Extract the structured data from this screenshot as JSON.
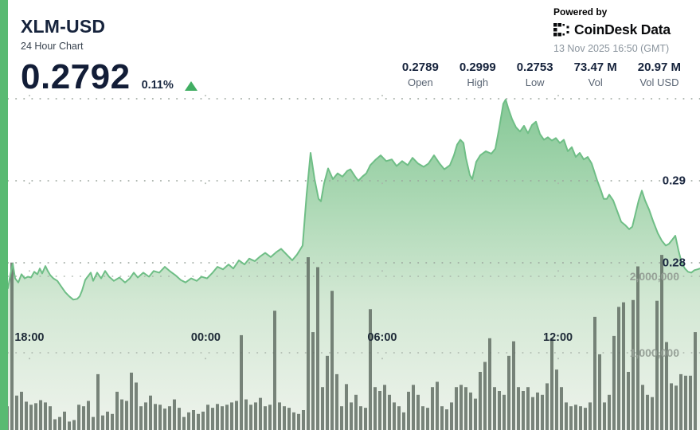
{
  "header": {
    "symbol": "XLM-USD",
    "subtitle": "24 Hour Chart",
    "price": "0.2792",
    "change_pct": "0.11%",
    "change_direction": "up"
  },
  "stats": [
    {
      "value": "0.2789",
      "label": "Open"
    },
    {
      "value": "0.2999",
      "label": "High"
    },
    {
      "value": "0.2753",
      "label": "Low"
    },
    {
      "value": "73.47 M",
      "label": "Vol"
    },
    {
      "value": "20.97 M",
      "label": "Vol USD"
    }
  ],
  "branding": {
    "powered_by": "Powered by",
    "brand": "CoinDesk Data",
    "timestamp": "13 Nov 2025 16:50 (GMT)"
  },
  "colors": {
    "accent_green": "#59ba72",
    "line_green": "#6fbe86",
    "area_top": "#84c795",
    "area_bottom": "#eef3ec",
    "volume_bar": "#5e6a60",
    "up_triangle": "#41ae63",
    "dark_navy_text": "#16233c",
    "gray_text": "#5a6574",
    "timestamp_gray": "#8b959e"
  },
  "chart_data": {
    "type": "area",
    "title": "XLM-USD 24 Hour Chart",
    "legend": [],
    "grid": "dotted",
    "y_axis_price": {
      "side": "right",
      "ticks": [
        {
          "value": 0.3,
          "label": ""
        },
        {
          "value": 0.29,
          "label": "0.29"
        },
        {
          "value": 0.28,
          "label": "0.28"
        }
      ],
      "range_visible": [
        0.2753,
        0.2999
      ]
    },
    "y_axis_volume": {
      "side": "right",
      "ticks": [
        {
          "value": 2000000,
          "label": "2,000,000"
        },
        {
          "value": 1000000,
          "label": "1,000,000"
        }
      ]
    },
    "x_axis": {
      "ticks": [
        {
          "label": "18:00",
          "t": 0.042
        },
        {
          "label": "00:00",
          "t": 0.294
        },
        {
          "label": "06:00",
          "t": 0.546
        },
        {
          "label": "12:00",
          "t": 0.797
        }
      ]
    },
    "price_series": {
      "name": "XLM-USD price",
      "points": [
        [
          0.0114,
          0.2769
        ],
        [
          0.0148,
          0.2785
        ],
        [
          0.0182,
          0.2799
        ],
        [
          0.0216,
          0.2781
        ],
        [
          0.0262,
          0.2776
        ],
        [
          0.0307,
          0.2786
        ],
        [
          0.0353,
          0.2781
        ],
        [
          0.0398,
          0.2783
        ],
        [
          0.0444,
          0.2782
        ],
        [
          0.0489,
          0.2789
        ],
        [
          0.0535,
          0.2786
        ],
        [
          0.0569,
          0.2793
        ],
        [
          0.0603,
          0.2787
        ],
        [
          0.0648,
          0.2796
        ],
        [
          0.0683,
          0.279
        ],
        [
          0.0717,
          0.2785
        ],
        [
          0.0762,
          0.2781
        ],
        [
          0.0819,
          0.2778
        ],
        [
          0.0876,
          0.2771
        ],
        [
          0.0933,
          0.2764
        ],
        [
          0.099,
          0.2759
        ],
        [
          0.1047,
          0.2755
        ],
        [
          0.1104,
          0.2756
        ],
        [
          0.1138,
          0.2759
        ],
        [
          0.1172,
          0.2766
        ],
        [
          0.1217,
          0.2779
        ],
        [
          0.1251,
          0.2783
        ],
        [
          0.1297,
          0.2788
        ],
        [
          0.1331,
          0.2778
        ],
        [
          0.1388,
          0.2788
        ],
        [
          0.1445,
          0.2781
        ],
        [
          0.1502,
          0.279
        ],
        [
          0.1559,
          0.2783
        ],
        [
          0.1627,
          0.2778
        ],
        [
          0.1706,
          0.2782
        ],
        [
          0.1786,
          0.2776
        ],
        [
          0.1854,
          0.2781
        ],
        [
          0.1911,
          0.2788
        ],
        [
          0.1968,
          0.2782
        ],
        [
          0.2048,
          0.2788
        ],
        [
          0.2128,
          0.2783
        ],
        [
          0.2196,
          0.279
        ],
        [
          0.2275,
          0.2788
        ],
        [
          0.2355,
          0.2795
        ],
        [
          0.2423,
          0.279
        ],
        [
          0.2503,
          0.2785
        ],
        [
          0.2582,
          0.2779
        ],
        [
          0.2651,
          0.2776
        ],
        [
          0.273,
          0.2781
        ],
        [
          0.281,
          0.2778
        ],
        [
          0.2878,
          0.2783
        ],
        [
          0.2958,
          0.2781
        ],
        [
          0.3038,
          0.2788
        ],
        [
          0.3106,
          0.2795
        ],
        [
          0.3185,
          0.2792
        ],
        [
          0.3265,
          0.2798
        ],
        [
          0.3333,
          0.2793
        ],
        [
          0.3413,
          0.2803
        ],
        [
          0.3493,
          0.2798
        ],
        [
          0.3561,
          0.2805
        ],
        [
          0.3641,
          0.2802
        ],
        [
          0.372,
          0.2808
        ],
        [
          0.3788,
          0.2812
        ],
        [
          0.3868,
          0.2807
        ],
        [
          0.3948,
          0.2813
        ],
        [
          0.4016,
          0.2817
        ],
        [
          0.4096,
          0.281
        ],
        [
          0.4175,
          0.2803
        ],
        [
          0.4243,
          0.281
        ],
        [
          0.4323,
          0.2821
        ],
        [
          0.438,
          0.2883
        ],
        [
          0.4437,
          0.2934
        ],
        [
          0.4494,
          0.2902
        ],
        [
          0.4551,
          0.2878
        ],
        [
          0.4585,
          0.2875
        ],
        [
          0.463,
          0.2897
        ],
        [
          0.4687,
          0.2915
        ],
        [
          0.4755,
          0.2902
        ],
        [
          0.4824,
          0.2909
        ],
        [
          0.4892,
          0.2905
        ],
        [
          0.496,
          0.2912
        ],
        [
          0.5006,
          0.2914
        ],
        [
          0.5074,
          0.2905
        ],
        [
          0.5119,
          0.29
        ],
        [
          0.5176,
          0.2905
        ],
        [
          0.5233,
          0.2909
        ],
        [
          0.529,
          0.2919
        ],
        [
          0.537,
          0.2926
        ],
        [
          0.5438,
          0.2931
        ],
        [
          0.5518,
          0.2924
        ],
        [
          0.5597,
          0.2926
        ],
        [
          0.5666,
          0.2918
        ],
        [
          0.5745,
          0.2924
        ],
        [
          0.5825,
          0.2919
        ],
        [
          0.5893,
          0.2928
        ],
        [
          0.5973,
          0.2921
        ],
        [
          0.6052,
          0.2917
        ],
        [
          0.6121,
          0.2921
        ],
        [
          0.62,
          0.2931
        ],
        [
          0.628,
          0.2921
        ],
        [
          0.6348,
          0.2914
        ],
        [
          0.6428,
          0.2919
        ],
        [
          0.6485,
          0.2931
        ],
        [
          0.653,
          0.2944
        ],
        [
          0.6576,
          0.295
        ],
        [
          0.6621,
          0.2946
        ],
        [
          0.6655,
          0.2928
        ],
        [
          0.6712,
          0.2907
        ],
        [
          0.6746,
          0.2902
        ],
        [
          0.6803,
          0.2923
        ],
        [
          0.686,
          0.2931
        ],
        [
          0.694,
          0.2936
        ],
        [
          0.7019,
          0.2933
        ],
        [
          0.7076,
          0.2939
        ],
        [
          0.7133,
          0.2965
        ],
        [
          0.719,
          0.2994
        ],
        [
          0.7224,
          0.2999
        ],
        [
          0.7258,
          0.2989
        ],
        [
          0.7315,
          0.2975
        ],
        [
          0.7372,
          0.2965
        ],
        [
          0.7429,
          0.296
        ],
        [
          0.7486,
          0.2967
        ],
        [
          0.7543,
          0.2958
        ],
        [
          0.76,
          0.2968
        ],
        [
          0.7656,
          0.2972
        ],
        [
          0.7713,
          0.2957
        ],
        [
          0.777,
          0.295
        ],
        [
          0.7827,
          0.2953
        ],
        [
          0.7884,
          0.2949
        ],
        [
          0.7941,
          0.2952
        ],
        [
          0.7998,
          0.2946
        ],
        [
          0.8055,
          0.295
        ],
        [
          0.8112,
          0.2936
        ],
        [
          0.8168,
          0.2941
        ],
        [
          0.8225,
          0.2929
        ],
        [
          0.8282,
          0.2934
        ],
        [
          0.8339,
          0.2926
        ],
        [
          0.8396,
          0.2929
        ],
        [
          0.8453,
          0.2921
        ],
        [
          0.8532,
          0.29
        ],
        [
          0.8589,
          0.2887
        ],
        [
          0.8623,
          0.2878
        ],
        [
          0.8669,
          0.2878
        ],
        [
          0.8703,
          0.2883
        ],
        [
          0.876,
          0.2876
        ],
        [
          0.8817,
          0.2863
        ],
        [
          0.8874,
          0.285
        ],
        [
          0.8931,
          0.2846
        ],
        [
          0.8987,
          0.2841
        ],
        [
          0.9033,
          0.2844
        ],
        [
          0.9078,
          0.286
        ],
        [
          0.9124,
          0.2876
        ],
        [
          0.9169,
          0.2888
        ],
        [
          0.9215,
          0.2876
        ],
        [
          0.9272,
          0.2865
        ],
        [
          0.9329,
          0.2851
        ],
        [
          0.9397,
          0.2836
        ],
        [
          0.9454,
          0.2827
        ],
        [
          0.9511,
          0.2821
        ],
        [
          0.9556,
          0.2823
        ],
        [
          0.9602,
          0.2828
        ],
        [
          0.9647,
          0.2833
        ],
        [
          0.9693,
          0.2815
        ],
        [
          0.9738,
          0.28
        ],
        [
          0.9784,
          0.2793
        ],
        [
          0.9829,
          0.2789
        ],
        [
          0.9875,
          0.2788
        ],
        [
          0.992,
          0.2791
        ],
        [
          0.9966,
          0.2792
        ],
        [
          1.0,
          0.2793
        ]
      ]
    },
    "volume_series": {
      "name": "Volume",
      "unit": "millions",
      "values": [
        0.6,
        0.3,
        2.18,
        0.44,
        0.49,
        0.36,
        0.32,
        0.34,
        0.38,
        0.35,
        0.3,
        0.13,
        0.16,
        0.23,
        0.1,
        0.12,
        0.32,
        0.3,
        0.37,
        0.16,
        0.72,
        0.18,
        0.23,
        0.2,
        0.49,
        0.39,
        0.37,
        0.74,
        0.61,
        0.3,
        0.35,
        0.44,
        0.33,
        0.32,
        0.27,
        0.3,
        0.39,
        0.28,
        0.16,
        0.22,
        0.25,
        0.2,
        0.23,
        0.32,
        0.28,
        0.33,
        0.3,
        0.32,
        0.35,
        0.37,
        1.23,
        0.39,
        0.32,
        0.35,
        0.41,
        0.3,
        0.32,
        1.55,
        0.35,
        0.3,
        0.28,
        0.22,
        0.2,
        0.25,
        2.25,
        1.27,
        2.12,
        0.55,
        0.96,
        1.81,
        0.72,
        0.3,
        0.59,
        0.35,
        0.45,
        0.3,
        0.28,
        1.57,
        0.55,
        0.5,
        0.58,
        0.45,
        0.35,
        0.3,
        0.22,
        0.49,
        0.58,
        0.45,
        0.3,
        0.28,
        0.55,
        0.62,
        0.3,
        0.26,
        0.35,
        0.55,
        0.58,
        0.55,
        0.48,
        0.4,
        0.75,
        0.88,
        1.19,
        0.55,
        0.5,
        0.45,
        0.96,
        1.15,
        0.55,
        0.5,
        0.55,
        0.42,
        0.48,
        0.45,
        0.6,
        1.19,
        0.78,
        0.55,
        0.35,
        0.3,
        0.32,
        0.3,
        0.28,
        0.35,
        1.47,
        0.98,
        0.35,
        0.45,
        1.22,
        1.6,
        1.66,
        0.75,
        1.69,
        2.13,
        0.58,
        0.45,
        0.42,
        1.68,
        2.28,
        1.14,
        0.6,
        0.57,
        0.72,
        0.7,
        0.7,
        1.27
      ]
    }
  }
}
